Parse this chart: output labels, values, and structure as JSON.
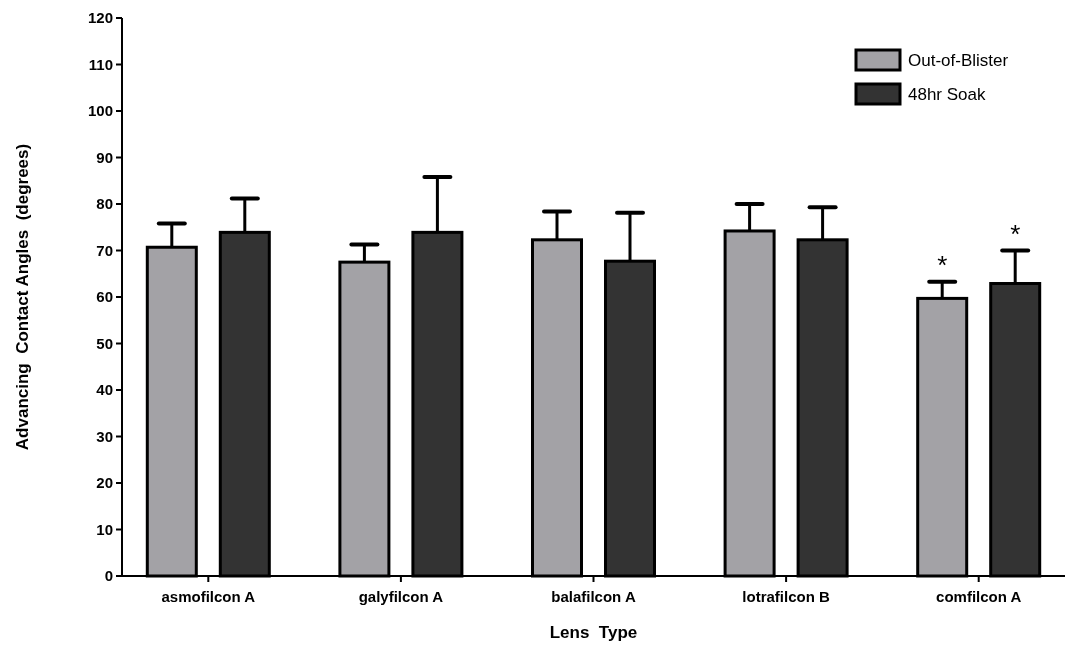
{
  "chart_data": {
    "type": "bar",
    "xlabel": "Lens  Type",
    "ylabel": "Advancing  Contact Angles  (degrees)",
    "categories": [
      "asmofilcon A",
      "galyfilcon A",
      "balafilcon A",
      "lotrafilcon B",
      "comfilcon A"
    ],
    "series": [
      {
        "name": "Out-of-Blister",
        "color": "#a3a2a6",
        "values": [
          70.7,
          67.5,
          72.3,
          74.2,
          59.7
        ],
        "errors": [
          [
            70.7,
            75.8
          ],
          [
            67.5,
            71.3
          ],
          [
            72.3,
            78.4
          ],
          [
            74.2,
            80.0
          ],
          [
            59.7,
            63.3
          ]
        ]
      },
      {
        "name": "48hr Soak",
        "color": "#333333",
        "values": [
          73.9,
          73.9,
          67.7,
          72.3,
          62.9
        ],
        "errors": [
          [
            73.9,
            81.2
          ],
          [
            73.9,
            85.8
          ],
          [
            67.7,
            78.1
          ],
          [
            72.3,
            79.3
          ],
          [
            62.9,
            70.0
          ]
        ]
      }
    ],
    "ylim": [
      0,
      120
    ],
    "yticks": [
      0,
      10,
      20,
      30,
      40,
      50,
      60,
      70,
      80,
      90,
      100,
      110,
      120
    ],
    "legend": "top right",
    "grid": false,
    "annotations": [
      "*",
      "*"
    ]
  }
}
